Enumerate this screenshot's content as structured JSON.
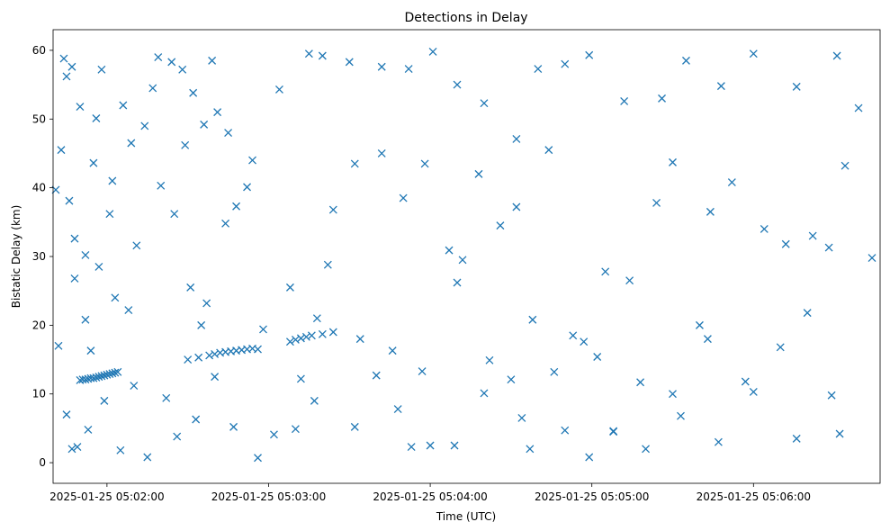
{
  "chart_data": {
    "type": "scatter",
    "title": "Detections in Delay",
    "xlabel": "Time (UTC)",
    "ylabel": "Bistatic Delay (km)",
    "x_ticks": [
      "2025-01-25 05:02:00",
      "2025-01-25 05:03:00",
      "2025-01-25 05:04:00",
      "2025-01-25 05:05:00",
      "2025-01-25 05:06:00"
    ],
    "y_ticks": [
      "0",
      "10",
      "20",
      "30",
      "40",
      "50",
      "60"
    ],
    "xlim": [
      "2025-01-25 05:01:40",
      "2025-01-25 05:06:47"
    ],
    "ylim": [
      -3,
      63
    ],
    "marker": "x",
    "grid": false,
    "color": "#1f77b4",
    "series": [
      {
        "points": [
          [
            "2025-01-25 05:01:50",
            12.0
          ],
          [
            "2025-01-25 05:01:51",
            12.1
          ],
          [
            "2025-01-25 05:01:52",
            12.1
          ],
          [
            "2025-01-25 05:01:53",
            12.2
          ],
          [
            "2025-01-25 05:01:54",
            12.3
          ],
          [
            "2025-01-25 05:01:55",
            12.3
          ],
          [
            "2025-01-25 05:01:56",
            12.4
          ],
          [
            "2025-01-25 05:01:57",
            12.5
          ],
          [
            "2025-01-25 05:01:58",
            12.6
          ],
          [
            "2025-01-25 05:01:59",
            12.7
          ],
          [
            "2025-01-25 05:02:00",
            12.8
          ],
          [
            "2025-01-25 05:02:01",
            12.9
          ],
          [
            "2025-01-25 05:02:02",
            13.0
          ],
          [
            "2025-01-25 05:02:03",
            13.1
          ],
          [
            "2025-01-25 05:02:04",
            13.2
          ],
          [
            "2025-01-25 05:02:30",
            15.0
          ],
          [
            "2025-01-25 05:02:34",
            15.3
          ],
          [
            "2025-01-25 05:02:38",
            15.6
          ],
          [
            "2025-01-25 05:02:40",
            15.8
          ],
          [
            "2025-01-25 05:02:42",
            16.0
          ],
          [
            "2025-01-25 05:02:44",
            16.1
          ],
          [
            "2025-01-25 05:02:46",
            16.2
          ],
          [
            "2025-01-25 05:02:48",
            16.3
          ],
          [
            "2025-01-25 05:02:50",
            16.4
          ],
          [
            "2025-01-25 05:02:52",
            16.5
          ],
          [
            "2025-01-25 05:02:54",
            16.6
          ],
          [
            "2025-01-25 05:02:56",
            16.5
          ],
          [
            "2025-01-25 05:03:08",
            17.6
          ],
          [
            "2025-01-25 05:03:10",
            17.9
          ],
          [
            "2025-01-25 05:03:12",
            18.1
          ],
          [
            "2025-01-25 05:03:14",
            18.3
          ],
          [
            "2025-01-25 05:03:16",
            18.5
          ],
          [
            "2025-01-25 05:03:20",
            18.7
          ],
          [
            "2025-01-25 05:03:24",
            19.0
          ],
          [
            "2025-01-25 05:01:41",
            39.7
          ],
          [
            "2025-01-25 05:01:44",
            58.8
          ],
          [
            "2025-01-25 05:01:43",
            45.5
          ],
          [
            "2025-01-25 05:01:45",
            56.2
          ],
          [
            "2025-01-25 05:01:47",
            57.6
          ],
          [
            "2025-01-25 05:01:46",
            38.1
          ],
          [
            "2025-01-25 05:01:48",
            32.6
          ],
          [
            "2025-01-25 05:01:50",
            51.8
          ],
          [
            "2025-01-25 05:01:52",
            30.2
          ],
          [
            "2025-01-25 05:01:55",
            43.6
          ],
          [
            "2025-01-25 05:01:56",
            50.1
          ],
          [
            "2025-01-25 05:01:58",
            57.2
          ],
          [
            "2025-01-25 05:02:06",
            52.0
          ],
          [
            "2025-01-25 05:02:09",
            46.5
          ],
          [
            "2025-01-25 05:02:11",
            31.6
          ],
          [
            "2025-01-25 05:02:17",
            54.5
          ],
          [
            "2025-01-25 05:02:19",
            59.0
          ],
          [
            "2025-01-25 05:02:24",
            58.3
          ],
          [
            "2025-01-25 05:02:28",
            57.2
          ],
          [
            "2025-01-25 05:02:32",
            53.8
          ],
          [
            "2025-01-25 05:02:36",
            49.2
          ],
          [
            "2025-01-25 05:02:41",
            51.0
          ],
          [
            "2025-01-25 05:02:45",
            48.0
          ],
          [
            "2025-01-25 05:02:52",
            40.1
          ],
          [
            "2025-01-25 05:03:04",
            54.3
          ],
          [
            "2025-01-25 05:03:15",
            59.5
          ],
          [
            "2025-01-25 05:03:20",
            59.2
          ],
          [
            "2025-01-25 05:03:30",
            58.3
          ],
          [
            "2025-01-25 05:03:42",
            57.6
          ],
          [
            "2025-01-25 05:03:52",
            57.3
          ],
          [
            "2025-01-25 05:04:01",
            59.8
          ],
          [
            "2025-01-25 05:04:10",
            55.0
          ],
          [
            "2025-01-25 05:04:20",
            52.3
          ],
          [
            "2025-01-25 05:04:32",
            47.1
          ],
          [
            "2025-01-25 05:04:40",
            57.3
          ],
          [
            "2025-01-25 05:04:50",
            58.0
          ],
          [
            "2025-01-25 05:04:59",
            59.3
          ],
          [
            "2025-01-25 05:05:12",
            52.6
          ],
          [
            "2025-01-25 05:05:26",
            53.0
          ],
          [
            "2025-01-25 05:05:35",
            58.5
          ],
          [
            "2025-01-25 05:05:48",
            54.8
          ],
          [
            "2025-01-25 05:06:00",
            59.5
          ],
          [
            "2025-01-25 05:06:16",
            54.7
          ],
          [
            "2025-01-25 05:06:31",
            59.2
          ],
          [
            "2025-01-25 05:06:39",
            51.6
          ],
          [
            "2025-01-25 05:06:44",
            29.8
          ],
          [
            "2025-01-25 05:01:42",
            17.0
          ],
          [
            "2025-01-25 05:01:45",
            7.0
          ],
          [
            "2025-01-25 05:01:47",
            2.0
          ],
          [
            "2025-01-25 05:01:49",
            2.3
          ],
          [
            "2025-01-25 05:01:53",
            4.8
          ],
          [
            "2025-01-25 05:01:59",
            9.0
          ],
          [
            "2025-01-25 05:02:05",
            1.8
          ],
          [
            "2025-01-25 05:02:10",
            11.2
          ],
          [
            "2025-01-25 05:02:15",
            0.8
          ],
          [
            "2025-01-25 05:02:22",
            9.4
          ],
          [
            "2025-01-25 05:02:26",
            3.8
          ],
          [
            "2025-01-25 05:02:33",
            6.3
          ],
          [
            "2025-01-25 05:02:40",
            12.5
          ],
          [
            "2025-01-25 05:02:47",
            5.2
          ],
          [
            "2025-01-25 05:02:56",
            0.7
          ],
          [
            "2025-01-25 05:03:02",
            4.1
          ],
          [
            "2025-01-25 05:03:10",
            4.9
          ],
          [
            "2025-01-25 05:03:17",
            9.0
          ],
          [
            "2025-01-25 05:03:32",
            5.2
          ],
          [
            "2025-01-25 05:03:40",
            12.7
          ],
          [
            "2025-01-25 05:03:48",
            7.8
          ],
          [
            "2025-01-25 05:03:53",
            2.3
          ],
          [
            "2025-01-25 05:04:00",
            2.5
          ],
          [
            "2025-01-25 05:04:09",
            2.5
          ],
          [
            "2025-01-25 05:04:20",
            10.1
          ],
          [
            "2025-01-25 05:04:30",
            12.1
          ],
          [
            "2025-01-25 05:04:37",
            2.0
          ],
          [
            "2025-01-25 05:04:50",
            4.7
          ],
          [
            "2025-01-25 05:04:59",
            0.8
          ],
          [
            "2025-01-25 05:05:08",
            4.5
          ],
          [
            "2025-01-25 05:05:20",
            2.0
          ],
          [
            "2025-01-25 05:05:33",
            6.8
          ],
          [
            "2025-01-25 05:05:47",
            3.0
          ],
          [
            "2025-01-25 05:06:00",
            10.3
          ],
          [
            "2025-01-25 05:06:16",
            3.5
          ],
          [
            "2025-01-25 05:06:29",
            9.8
          ],
          [
            "2025-01-25 05:06:32",
            4.2
          ],
          [
            "2025-01-25 05:01:57",
            28.5
          ],
          [
            "2025-01-25 05:02:03",
            24.0
          ],
          [
            "2025-01-25 05:02:08",
            22.2
          ],
          [
            "2025-01-25 05:02:25",
            36.2
          ],
          [
            "2025-01-25 05:02:31",
            25.5
          ],
          [
            "2025-01-25 05:02:37",
            23.2
          ],
          [
            "2025-01-25 05:02:44",
            34.8
          ],
          [
            "2025-01-25 05:02:58",
            19.4
          ],
          [
            "2025-01-25 05:03:08",
            25.5
          ],
          [
            "2025-01-25 05:03:18",
            21.0
          ],
          [
            "2025-01-25 05:03:24",
            36.8
          ],
          [
            "2025-01-25 05:03:32",
            43.5
          ],
          [
            "2025-01-25 05:03:42",
            45.0
          ],
          [
            "2025-01-25 05:03:50",
            38.5
          ],
          [
            "2025-01-25 05:03:58",
            43.5
          ],
          [
            "2025-01-25 05:04:07",
            30.9
          ],
          [
            "2025-01-25 05:04:12",
            29.5
          ],
          [
            "2025-01-25 05:04:18",
            42.0
          ],
          [
            "2025-01-25 05:04:26",
            34.5
          ],
          [
            "2025-01-25 05:04:32",
            37.2
          ],
          [
            "2025-01-25 05:04:38",
            20.8
          ],
          [
            "2025-01-25 05:04:44",
            45.5
          ],
          [
            "2025-01-25 05:04:53",
            18.5
          ],
          [
            "2025-01-25 05:05:02",
            15.4
          ],
          [
            "2025-01-25 05:05:05",
            27.8
          ],
          [
            "2025-01-25 05:05:14",
            26.5
          ],
          [
            "2025-01-25 05:05:24",
            37.8
          ],
          [
            "2025-01-25 05:05:30",
            43.7
          ],
          [
            "2025-01-25 05:05:40",
            20.0
          ],
          [
            "2025-01-25 05:05:44",
            36.5
          ],
          [
            "2025-01-25 05:05:52",
            40.8
          ],
          [
            "2025-01-25 05:06:04",
            34.0
          ],
          [
            "2025-01-25 05:06:12",
            31.8
          ],
          [
            "2025-01-25 05:06:22",
            33.0
          ],
          [
            "2025-01-25 05:06:28",
            31.3
          ],
          [
            "2025-01-25 05:06:34",
            43.2
          ],
          [
            "2025-01-25 05:06:20",
            21.8
          ],
          [
            "2025-01-25 05:06:10",
            16.8
          ],
          [
            "2025-01-25 05:05:57",
            11.8
          ],
          [
            "2025-01-25 05:05:43",
            18.0
          ],
          [
            "2025-01-25 05:05:30",
            10.0
          ],
          [
            "2025-01-25 05:05:18",
            11.7
          ],
          [
            "2025-01-25 05:05:08",
            4.6
          ],
          [
            "2025-01-25 05:04:57",
            17.6
          ],
          [
            "2025-01-25 05:04:46",
            13.2
          ],
          [
            "2025-01-25 05:04:34",
            6.5
          ],
          [
            "2025-01-25 05:04:22",
            14.9
          ],
          [
            "2025-01-25 05:04:10",
            26.2
          ],
          [
            "2025-01-25 05:03:57",
            13.3
          ],
          [
            "2025-01-25 05:03:46",
            16.3
          ],
          [
            "2025-01-25 05:03:34",
            18.0
          ],
          [
            "2025-01-25 05:03:22",
            28.8
          ],
          [
            "2025-01-25 05:03:12",
            12.2
          ],
          [
            "2025-01-25 05:02:54",
            44.0
          ],
          [
            "2025-01-25 05:02:48",
            37.3
          ],
          [
            "2025-01-25 05:02:39",
            58.5
          ],
          [
            "2025-01-25 05:02:35",
            20.0
          ],
          [
            "2025-01-25 05:02:29",
            46.2
          ],
          [
            "2025-01-25 05:02:20",
            40.3
          ],
          [
            "2025-01-25 05:02:14",
            49.0
          ],
          [
            "2025-01-25 05:02:02",
            41.0
          ],
          [
            "2025-01-25 05:02:01",
            36.2
          ],
          [
            "2025-01-25 05:01:54",
            16.3
          ],
          [
            "2025-01-25 05:01:52",
            20.8
          ],
          [
            "2025-01-25 05:01:48",
            26.8
          ]
        ]
      }
    ]
  }
}
